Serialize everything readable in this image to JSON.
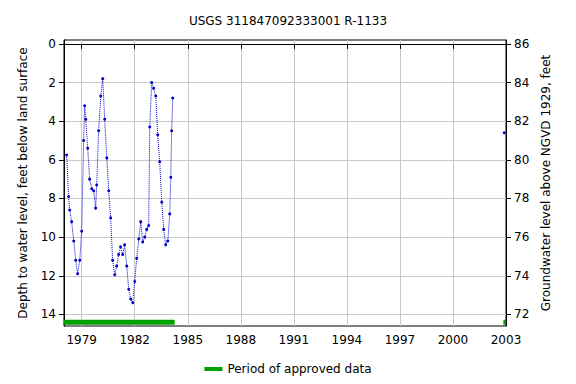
{
  "chart_data": {
    "type": "line",
    "title": "USGS 311847092333001 R-1133",
    "y_label": "Depth to water level, feet below land surface",
    "y2_label": "Groundwater level above NGVD 1929, feet",
    "xlim": [
      1978,
      2003
    ],
    "xticks": [
      1979,
      1982,
      1985,
      1988,
      1991,
      1994,
      1997,
      2000,
      2003
    ],
    "ylim": [
      14.6,
      -0.2
    ],
    "yticks": [
      0,
      2,
      4,
      6,
      8,
      10,
      12,
      14
    ],
    "y2lim": [
      71.4,
      86.2
    ],
    "y2ticks": [
      72,
      74,
      76,
      78,
      80,
      82,
      84,
      86
    ],
    "grid": true,
    "legend": "bottom",
    "series": [
      {
        "color": "#0000cc",
        "marker": "circle",
        "line_style": "dotted",
        "x": [
          1978.15,
          1978.26,
          1978.32,
          1978.43,
          1978.55,
          1978.66,
          1978.77,
          1978.89,
          1979.0,
          1979.11,
          1979.17,
          1979.23,
          1979.34,
          1979.45,
          1979.57,
          1979.68,
          1979.79,
          1979.85,
          1979.96,
          1980.08,
          1980.19,
          1980.3,
          1980.42,
          1980.53,
          1980.64,
          1980.75,
          1980.87,
          1980.98,
          1981.09,
          1981.2,
          1981.32,
          1981.43,
          1981.55,
          1981.66,
          1981.77,
          1981.89,
          1982.0,
          1982.11,
          1982.23,
          1982.34,
          1982.45,
          1982.57,
          1982.68,
          1982.79,
          1982.85,
          1982.96,
          1983.07,
          1983.19,
          1983.3,
          1983.41,
          1983.53,
          1983.64,
          1983.75,
          1983.87,
          1983.98,
          1984.04,
          1984.09,
          1984.15,
          1993.5,
          2002.9
        ],
        "values": [
          5.75,
          7.9,
          8.6,
          9.2,
          10.2,
          11.2,
          11.9,
          11.2,
          9.7,
          5.0,
          3.2,
          3.9,
          5.4,
          7.0,
          7.5,
          7.6,
          8.5,
          7.3,
          4.5,
          2.7,
          1.8,
          3.9,
          5.9,
          7.6,
          9.0,
          11.2,
          11.95,
          11.5,
          10.9,
          10.5,
          10.9,
          10.4,
          11.5,
          12.7,
          13.2,
          13.4,
          12.3,
          11.1,
          10.1,
          9.2,
          10.25,
          10.0,
          9.6,
          9.4,
          4.3,
          2.0,
          2.3,
          2.7,
          4.7,
          6.1,
          8.2,
          9.6,
          10.4,
          10.2,
          8.8,
          6.9,
          4.5,
          2.8,
          null,
          4.6
        ]
      },
      {
        "name": "Period of approved data",
        "color": "#00a000",
        "line_style": "solid",
        "x": [
          1978.0,
          1984.26,
          1993.5,
          2002.85,
          2003.0
        ],
        "values": [
          14.4,
          14.4,
          null,
          14.4,
          14.4
        ]
      }
    ]
  }
}
